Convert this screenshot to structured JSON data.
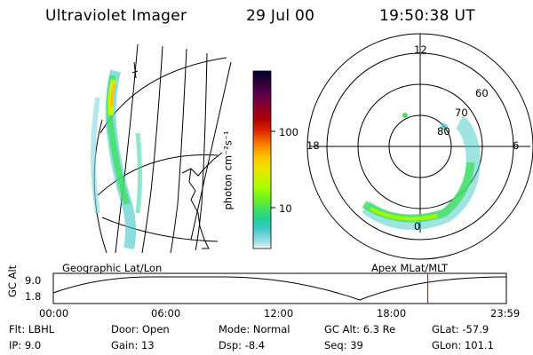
{
  "header": {
    "instrument": "Ultraviolet Imager",
    "date": "29 Jul 00",
    "time": "19:50:38 UT"
  },
  "colorbar": {
    "label": "photon cm⁻²s⁻¹",
    "ticks": [
      "100",
      "10"
    ],
    "colors": [
      "#000033",
      "#2a0033",
      "#55004a",
      "#880030",
      "#b00000",
      "#d82000",
      "#f05800",
      "#f89000",
      "#ffc000",
      "#f0e000",
      "#d0f000",
      "#a0ff00",
      "#70f020",
      "#40e060",
      "#20d0a0",
      "#40c8c8",
      "#80d8e0",
      "#c0e8f0",
      "#ffffff"
    ]
  },
  "geo_panel": {
    "caption": "Geographic Lat/Lon"
  },
  "polar_panel": {
    "caption": "Apex MLat/MLT",
    "mlt_labels": {
      "top": "12",
      "left": "18",
      "right": "6",
      "bottom": "0"
    },
    "lat_labels": [
      "60",
      "70",
      "80"
    ]
  },
  "timeline": {
    "y_axis_label": "GC Alt",
    "y_ticks": [
      "9.0",
      "1.8"
    ],
    "x_ticks": [
      "00:00",
      "06:00",
      "12:00",
      "18:00",
      "23:59"
    ],
    "current_time_hours": 19.84
  },
  "status": {
    "row1": [
      {
        "label": "Flt:",
        "value": "LBHL"
      },
      {
        "label": "Door:",
        "value": "Open"
      },
      {
        "label": "Mode:",
        "value": "Normal"
      },
      {
        "label": "GC Alt:",
        "value": "6.3 Re"
      },
      {
        "label": "GLat:",
        "value": "-57.9"
      }
    ],
    "row2": [
      {
        "label": "IP:",
        "value": "9.0"
      },
      {
        "label": "Gain:",
        "value": "13"
      },
      {
        "label": "Dsp:",
        "value": "-8.4"
      },
      {
        "label": "Seq:",
        "value": "39"
      },
      {
        "label": "GLon:",
        "value": "101.1"
      }
    ]
  }
}
